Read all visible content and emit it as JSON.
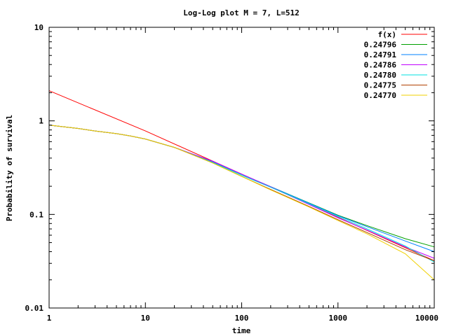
{
  "chart_data": {
    "type": "line",
    "title": "Log-Log plot M = 7, L=512",
    "xlabel": "time",
    "ylabel": "Probability of survival",
    "xscale": "log",
    "yscale": "log",
    "xlim": [
      1,
      10000
    ],
    "ylim": [
      0.01,
      10
    ],
    "x_ticks": [
      {
        "value": 1,
        "label": "1"
      },
      {
        "value": 10,
        "label": "10"
      },
      {
        "value": 100,
        "label": "100"
      },
      {
        "value": 1000,
        "label": "1000"
      },
      {
        "value": 10000,
        "label": "10000"
      }
    ],
    "y_ticks": [
      {
        "value": 0.01,
        "label": "0.01"
      },
      {
        "value": 0.1,
        "label": "0.1"
      },
      {
        "value": 1,
        "label": "1"
      },
      {
        "value": 10,
        "label": "10"
      }
    ],
    "grid": false,
    "legend": "top-right",
    "series": [
      {
        "name": "f(x)",
        "color": "#ff0000",
        "points": [
          [
            1,
            2.1
          ],
          [
            10,
            0.78
          ],
          [
            100,
            0.27
          ],
          [
            1000,
            0.093
          ],
          [
            10000,
            0.032
          ]
        ]
      },
      {
        "name": "0.24796",
        "color": "#00a000",
        "points": [
          [
            1,
            0.9
          ],
          [
            2,
            0.83
          ],
          [
            3,
            0.78
          ],
          [
            5,
            0.73
          ],
          [
            7,
            0.69
          ],
          [
            10,
            0.64
          ],
          [
            20,
            0.52
          ],
          [
            50,
            0.365
          ],
          [
            100,
            0.268
          ],
          [
            200,
            0.198
          ],
          [
            500,
            0.133
          ],
          [
            1000,
            0.098
          ],
          [
            2000,
            0.076
          ],
          [
            5000,
            0.055
          ],
          [
            10000,
            0.045
          ]
        ]
      },
      {
        "name": "0.24791",
        "color": "#0080ff",
        "points": [
          [
            1,
            0.9
          ],
          [
            2,
            0.83
          ],
          [
            3,
            0.78
          ],
          [
            5,
            0.73
          ],
          [
            7,
            0.69
          ],
          [
            10,
            0.64
          ],
          [
            20,
            0.52
          ],
          [
            50,
            0.365
          ],
          [
            100,
            0.268
          ],
          [
            200,
            0.198
          ],
          [
            500,
            0.132
          ],
          [
            1000,
            0.097
          ],
          [
            2000,
            0.074
          ],
          [
            5000,
            0.052
          ],
          [
            10000,
            0.04
          ]
        ]
      },
      {
        "name": "0.24786",
        "color": "#c000ff",
        "points": [
          [
            1,
            0.9
          ],
          [
            2,
            0.83
          ],
          [
            3,
            0.78
          ],
          [
            5,
            0.73
          ],
          [
            7,
            0.69
          ],
          [
            10,
            0.64
          ],
          [
            20,
            0.52
          ],
          [
            50,
            0.37
          ],
          [
            100,
            0.27
          ],
          [
            200,
            0.197
          ],
          [
            500,
            0.128
          ],
          [
            1000,
            0.092
          ],
          [
            2000,
            0.068
          ],
          [
            5000,
            0.045
          ],
          [
            10000,
            0.034
          ]
        ]
      },
      {
        "name": "0.24780",
        "color": "#00e0e0",
        "points": [
          [
            1,
            0.9
          ],
          [
            2,
            0.83
          ],
          [
            3,
            0.78
          ],
          [
            5,
            0.73
          ],
          [
            7,
            0.69
          ],
          [
            10,
            0.64
          ],
          [
            20,
            0.52
          ],
          [
            50,
            0.36
          ],
          [
            100,
            0.262
          ],
          [
            200,
            0.195
          ],
          [
            500,
            0.13
          ],
          [
            1000,
            0.095
          ],
          [
            2000,
            0.07
          ],
          [
            5000,
            0.046
          ],
          [
            10000,
            0.031
          ]
        ]
      },
      {
        "name": "0.24775",
        "color": "#b04000",
        "points": [
          [
            1,
            0.9
          ],
          [
            2,
            0.83
          ],
          [
            3,
            0.78
          ],
          [
            5,
            0.73
          ],
          [
            7,
            0.69
          ],
          [
            10,
            0.64
          ],
          [
            20,
            0.52
          ],
          [
            50,
            0.355
          ],
          [
            100,
            0.255
          ],
          [
            200,
            0.185
          ],
          [
            500,
            0.122
          ],
          [
            1000,
            0.088
          ],
          [
            2000,
            0.064
          ],
          [
            5000,
            0.042
          ],
          [
            10000,
            0.032
          ]
        ]
      },
      {
        "name": "0.24770",
        "color": "#f0d000",
        "points": [
          [
            1,
            0.9
          ],
          [
            2,
            0.83
          ],
          [
            3,
            0.78
          ],
          [
            5,
            0.73
          ],
          [
            7,
            0.69
          ],
          [
            10,
            0.64
          ],
          [
            20,
            0.52
          ],
          [
            50,
            0.355
          ],
          [
            100,
            0.255
          ],
          [
            200,
            0.183
          ],
          [
            500,
            0.12
          ],
          [
            1000,
            0.086
          ],
          [
            2000,
            0.062
          ],
          [
            5000,
            0.038
          ],
          [
            10000,
            0.02
          ]
        ]
      }
    ]
  }
}
